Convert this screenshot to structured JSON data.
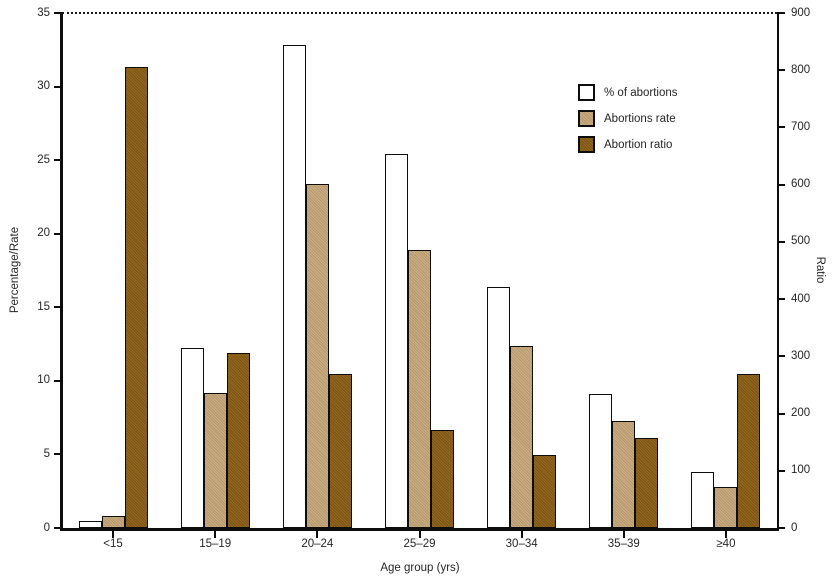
{
  "figure": {
    "background": "#ffffff",
    "text_color": "#262626",
    "axis_color": "#0d0d0d"
  },
  "chart_data": {
    "type": "bar",
    "title": "",
    "categories": [
      "<15",
      "15–19",
      "20–24",
      "25–29",
      "30–34",
      "35–39",
      "≥40"
    ],
    "series": [
      {
        "name": "% of abortions",
        "axis": "left",
        "fill": "#ffffff",
        "textured": false,
        "values": [
          0.5,
          12.2,
          32.8,
          25.4,
          16.4,
          9.1,
          3.8
        ]
      },
      {
        "name": "Abortions rate",
        "axis": "left",
        "fill": "#c9a87b",
        "textured": true,
        "values": [
          0.8,
          9.2,
          23.4,
          18.9,
          12.4,
          7.3,
          2.8
        ]
      },
      {
        "name": "Abortion ratio",
        "axis": "right",
        "fill": "#8a5c12",
        "textured": true,
        "values": [
          805,
          305,
          270,
          172,
          127,
          157,
          269
        ]
      }
    ],
    "xlabel": "Age group (yrs)",
    "ylabel_left": "Percentage/Rate",
    "ylabel_right": "Ratio",
    "y_left": {
      "min": 0,
      "max": 35,
      "ticks": [
        0,
        5,
        10,
        15,
        20,
        25,
        30,
        35
      ]
    },
    "y_right": {
      "min": 0,
      "max": 900,
      "ticks": [
        0,
        100,
        200,
        300,
        400,
        500,
        600,
        700,
        800,
        900
      ]
    },
    "legend_position": "upper-right-inside",
    "grid": false
  }
}
